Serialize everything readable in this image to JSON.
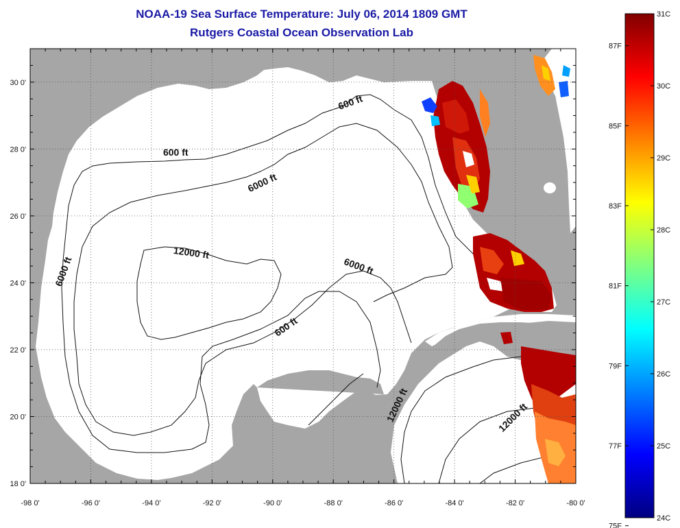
{
  "header": {
    "title": "NOAA-19 Sea Surface Temperature:  July 06, 2014 1809 GMT",
    "subtitle": "Rutgers Coastal Ocean Observation Lab"
  },
  "map": {
    "lon_range": [
      -98,
      -80
    ],
    "lat_range": [
      18,
      31
    ],
    "lon_ticks": [
      {
        "value": -98,
        "label": "-98 0'"
      },
      {
        "value": -96,
        "label": "-96 0'"
      },
      {
        "value": -94,
        "label": "-94 0'"
      },
      {
        "value": -92,
        "label": "-92 0'"
      },
      {
        "value": -90,
        "label": "-90 0'"
      },
      {
        "value": -88,
        "label": "-88 0'"
      },
      {
        "value": -86,
        "label": "-86 0'"
      },
      {
        "value": -84,
        "label": "-84 0'"
      },
      {
        "value": -82,
        "label": "-82 0'"
      },
      {
        "value": -80,
        "label": "-80 0'"
      }
    ],
    "lat_ticks": [
      {
        "value": 30,
        "label": "30 0'"
      },
      {
        "value": 28,
        "label": "28 0'"
      },
      {
        "value": 26,
        "label": "26 0'"
      },
      {
        "value": 24,
        "label": "24 0'"
      },
      {
        "value": 22,
        "label": "22 0'"
      },
      {
        "value": 20,
        "label": "20 0'"
      },
      {
        "value": 18,
        "label": "18 0'"
      }
    ],
    "contour_labels": [
      {
        "text": "600 ft",
        "lon": -93.2,
        "lat": 27.8,
        "rot": 0
      },
      {
        "text": "600 ft",
        "lon": -87.4,
        "lat": 29.3,
        "rot": -20
      },
      {
        "text": "6000 ft",
        "lon": -90.3,
        "lat": 26.9,
        "rot": -25
      },
      {
        "text": "12000 ft",
        "lon": -92.7,
        "lat": 24.8,
        "rot": 8
      },
      {
        "text": "6000 ft",
        "lon": -96.8,
        "lat": 24.3,
        "rot": -70
      },
      {
        "text": "6000 ft",
        "lon": -87.2,
        "lat": 24.4,
        "rot": 20
      },
      {
        "text": "600 ft",
        "lon": -89.5,
        "lat": 22.6,
        "rot": -35
      },
      {
        "text": "12000 ft",
        "lon": -85.8,
        "lat": 20.3,
        "rot": -65
      },
      {
        "text": "12000 ft",
        "lon": -82.0,
        "lat": 19.9,
        "rot": -45
      }
    ],
    "land_color": "#a6a6a6",
    "ocean_color": "#ffffff"
  },
  "colorbar": {
    "celsius_ticks": [
      {
        "value": 31,
        "label": "31C"
      },
      {
        "value": 30,
        "label": "30C"
      },
      {
        "value": 29,
        "label": "29C"
      },
      {
        "value": 28,
        "label": "28C"
      },
      {
        "value": 27,
        "label": "27C"
      },
      {
        "value": 26,
        "label": "26C"
      },
      {
        "value": 25,
        "label": "25C"
      },
      {
        "value": 24,
        "label": "24C"
      }
    ],
    "fahrenheit_ticks": [
      {
        "value": 87,
        "label": "87F"
      },
      {
        "value": 85,
        "label": "85F"
      },
      {
        "value": 83,
        "label": "83F"
      },
      {
        "value": 81,
        "label": "81F"
      },
      {
        "value": 79,
        "label": "79F"
      },
      {
        "value": 77,
        "label": "77F"
      },
      {
        "value": 75,
        "label": "75F"
      }
    ],
    "colors": [
      "#000080",
      "#0000ff",
      "#0080ff",
      "#00ffff",
      "#80ff80",
      "#ffff00",
      "#ff8000",
      "#ff0000",
      "#800000"
    ]
  }
}
